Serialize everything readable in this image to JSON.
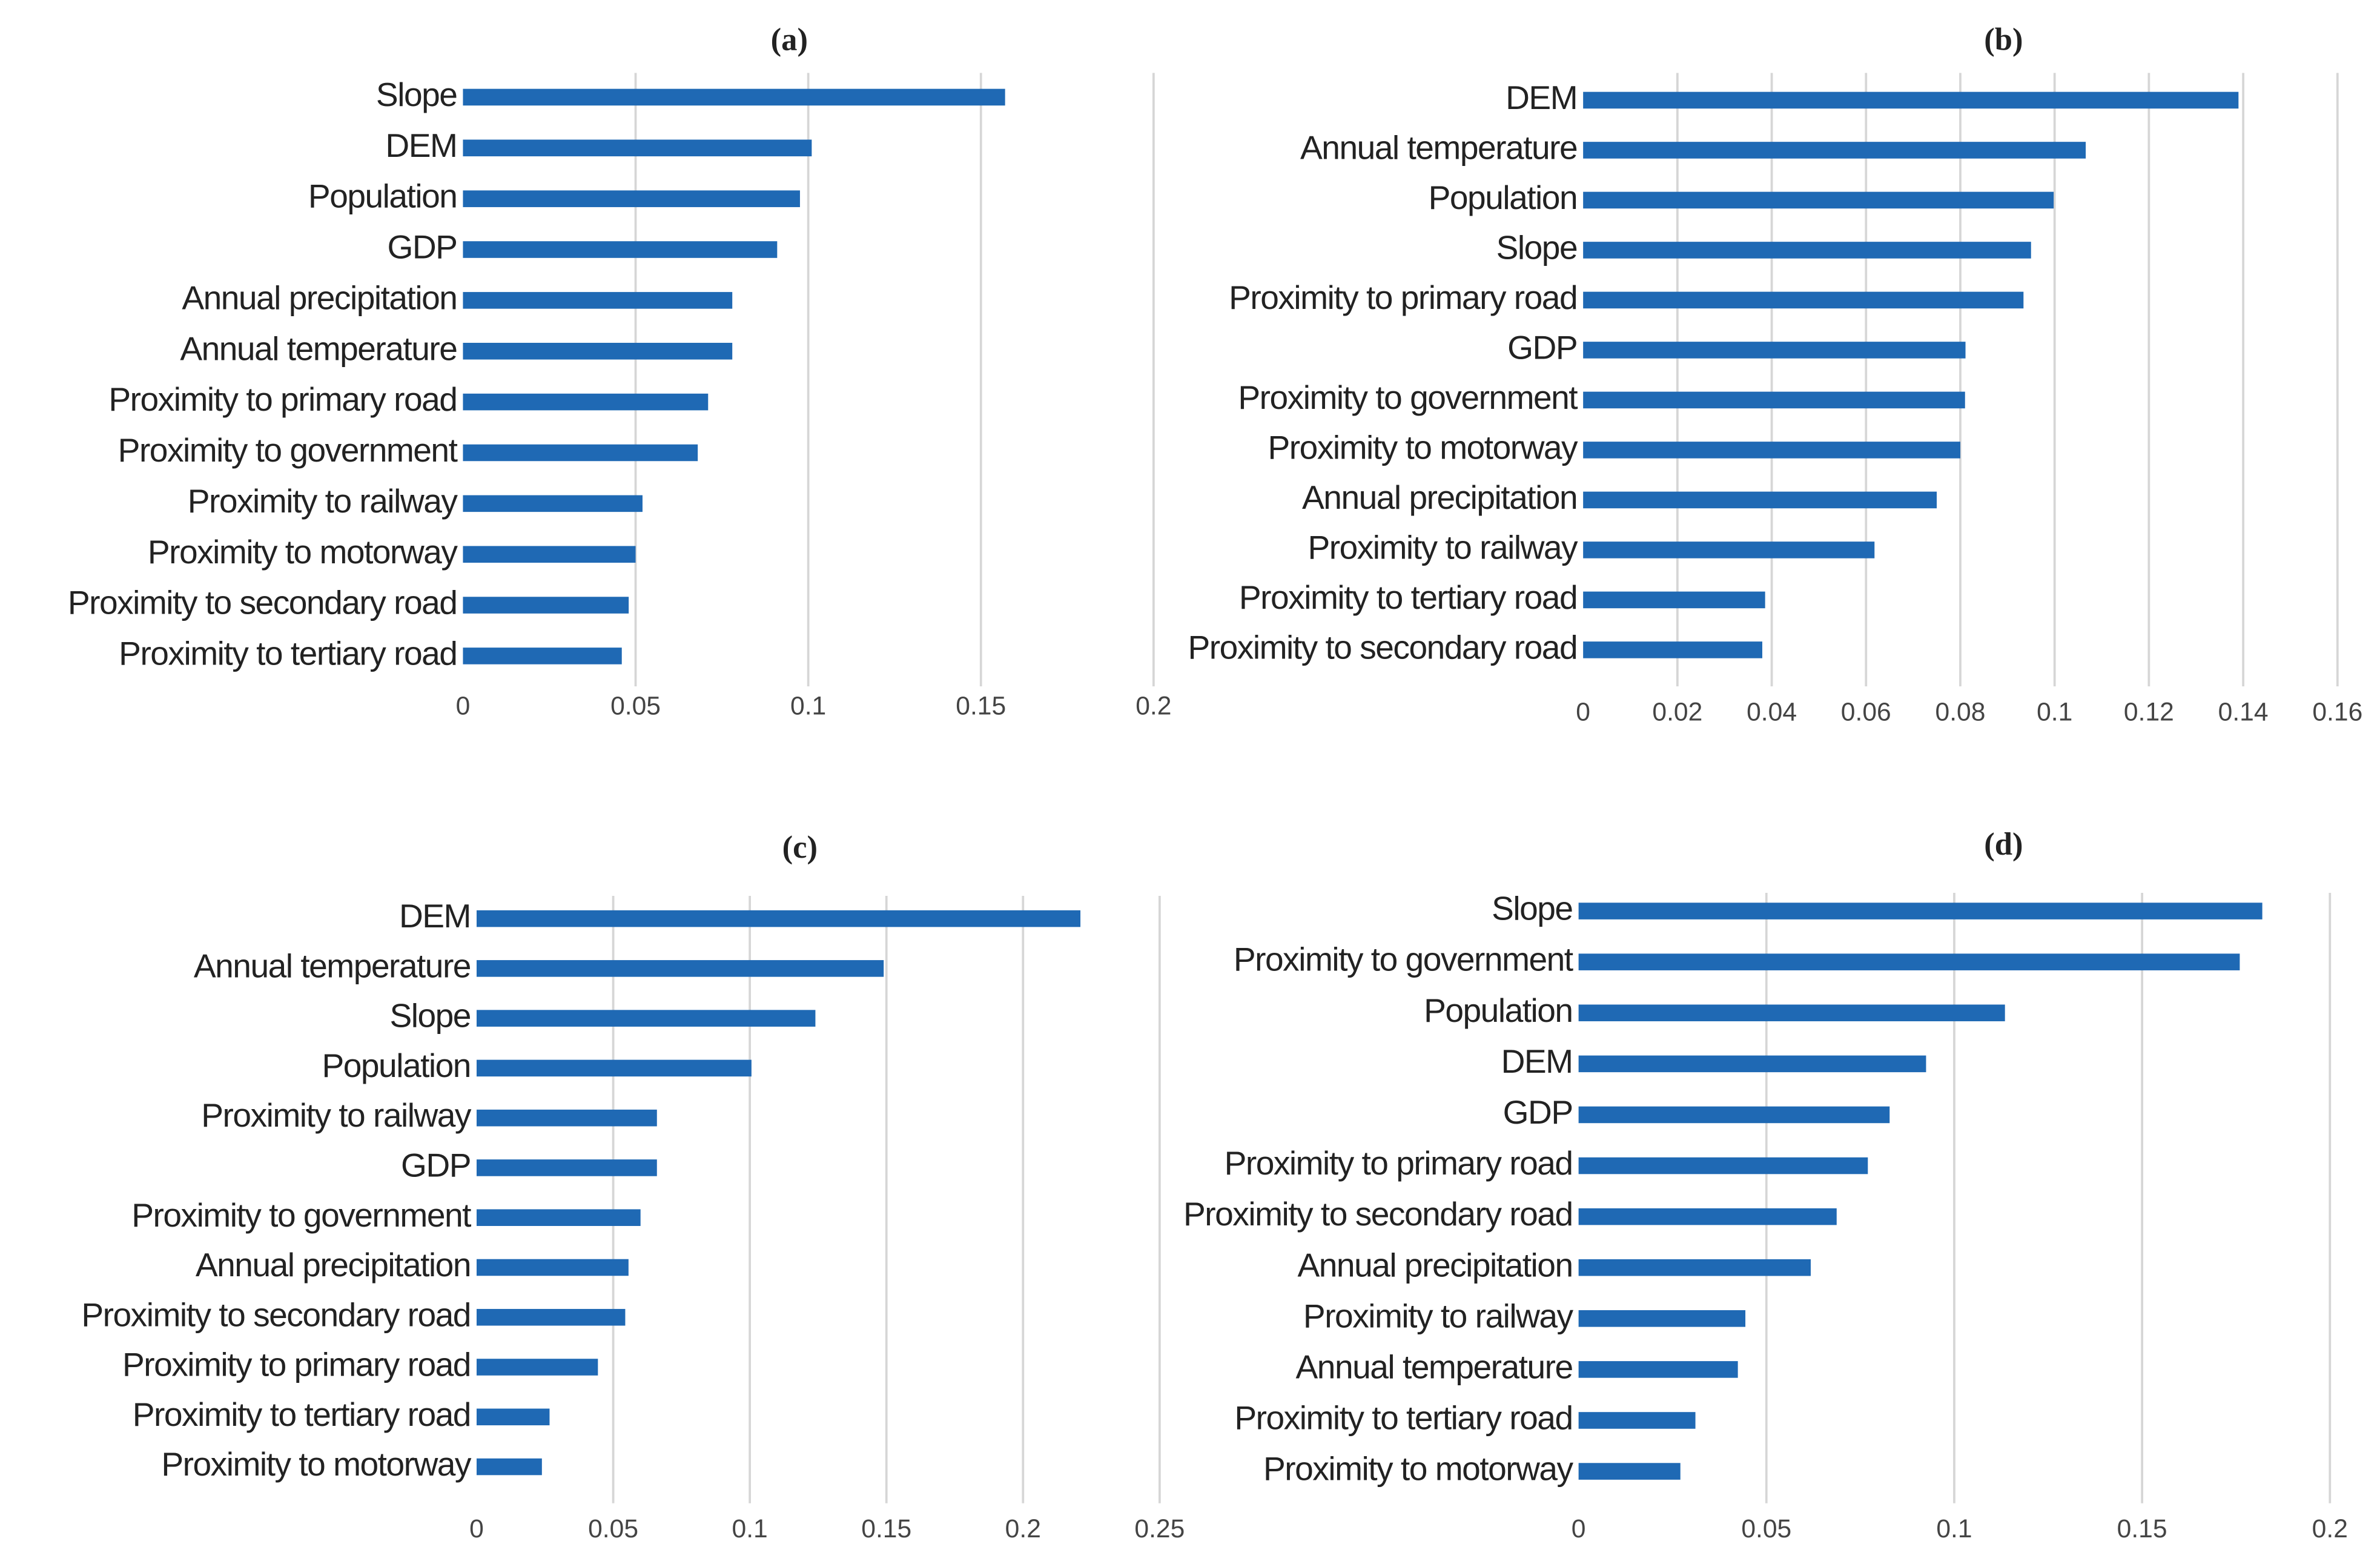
{
  "chart_data": [
    {
      "type": "bar",
      "orientation": "horizontal",
      "title": "(a)",
      "color": "#1f69b4",
      "grid": true,
      "categories": [
        "Slope",
        "DEM",
        "Population",
        "GDP",
        "Annual precipitation",
        "Annual temperature",
        "Proximity to primary road",
        "Proximity to government",
        "Proximity to railway",
        "Proximity to motorway",
        "Proximity to secondary road",
        "Proximity to tertiary road"
      ],
      "values": [
        0.157,
        0.101,
        0.0976,
        0.091,
        0.078,
        0.078,
        0.071,
        0.068,
        0.052,
        0.05,
        0.048,
        0.046
      ],
      "xlim": [
        0,
        0.2
      ],
      "xticks": [
        0,
        0.05,
        0.1,
        0.15,
        0.2
      ]
    },
    {
      "type": "bar",
      "orientation": "horizontal",
      "title": "(b)",
      "color": "#1f69b4",
      "grid": true,
      "categories": [
        "DEM",
        "Annual temperature",
        "Population",
        "Slope",
        "Proximity to primary road",
        "GDP",
        "Proximity to government",
        "Proximity to motorway",
        "Annual precipitation",
        "Proximity to railway",
        "Proximity to tertiary road",
        "Proximity to secondary road"
      ],
      "values": [
        0.139,
        0.1066,
        0.0998,
        0.095,
        0.0934,
        0.0811,
        0.081,
        0.08,
        0.075,
        0.0618,
        0.0386,
        0.038
      ],
      "xlim": [
        0,
        0.16
      ],
      "xticks": [
        0,
        0.02,
        0.04,
        0.06,
        0.08,
        0.1,
        0.12,
        0.14,
        0.16
      ]
    },
    {
      "type": "bar",
      "orientation": "horizontal",
      "title": "(c)",
      "color": "#1f69b4",
      "grid": true,
      "categories": [
        "DEM",
        "Annual temperature",
        "Slope",
        "Population",
        "Proximity to railway",
        "GDP",
        "Proximity to government",
        "Annual precipitation",
        "Proximity to secondary road",
        "Proximity to primary road",
        "Proximity to tertiary road",
        "Proximity to motorway"
      ],
      "values": [
        0.221,
        0.149,
        0.124,
        0.1006,
        0.066,
        0.066,
        0.06,
        0.0556,
        0.0544,
        0.0444,
        0.0267,
        0.0239
      ],
      "xlim": [
        0,
        0.25
      ],
      "xticks": [
        0,
        0.05,
        0.1,
        0.15,
        0.2,
        0.25
      ]
    },
    {
      "type": "bar",
      "orientation": "horizontal",
      "title": "(d)",
      "color": "#1f69b4",
      "grid": true,
      "categories": [
        "Slope",
        "Proximity to government",
        "Population",
        "DEM",
        "GDP",
        "Proximity to primary road",
        "Proximity to secondary road",
        "Annual precipitation",
        "Proximity to railway",
        "Annual temperature",
        "Proximity to tertiary road",
        "Proximity to motorway"
      ],
      "values": [
        0.182,
        0.176,
        0.1135,
        0.0925,
        0.0828,
        0.077,
        0.0687,
        0.0618,
        0.0444,
        0.0424,
        0.0311,
        0.0271
      ],
      "xlim": [
        0,
        0.2
      ],
      "xticks": [
        0,
        0.05,
        0.1,
        0.15,
        0.2
      ]
    }
  ]
}
